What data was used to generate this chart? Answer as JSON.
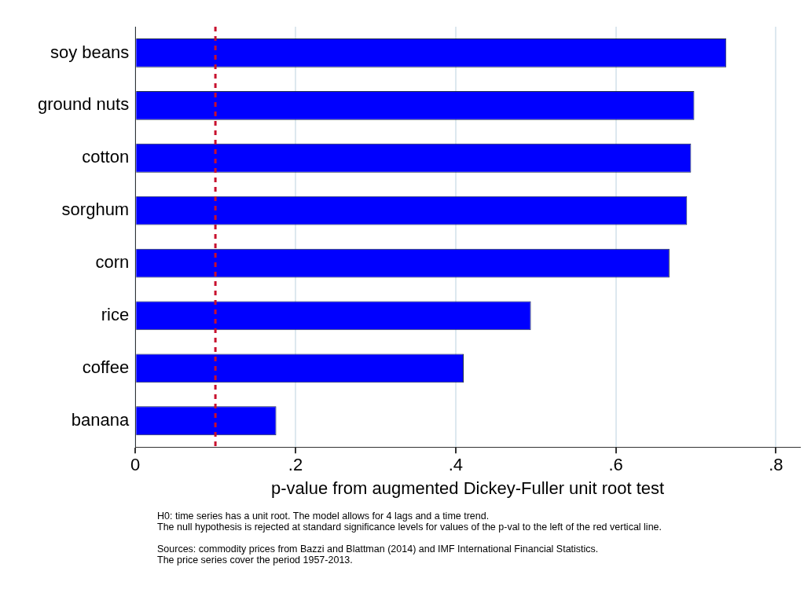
{
  "chart_data": {
    "type": "bar",
    "orientation": "horizontal",
    "xlabel": "p-value from augmented Dickey-Fuller unit root test",
    "categories": [
      "soy beans",
      "ground nuts",
      "cotton",
      "sorghum",
      "corn",
      "rice",
      "coffee",
      "banana"
    ],
    "values": [
      0.738,
      0.698,
      0.694,
      0.689,
      0.667,
      0.494,
      0.41,
      0.176
    ],
    "color": "#0000ff",
    "xlim": [
      0,
      0.83
    ],
    "xticks": [
      0,
      {
        "value": 0.2,
        "label": ".2"
      },
      {
        "value": 0.4,
        "label": ".4"
      },
      {
        "value": 0.6,
        "label": ".6"
      },
      {
        "value": 0.8,
        "label": ".8"
      }
    ],
    "grid": "x",
    "legend": false,
    "ref_lines": [
      {
        "axis": "x",
        "value": 0.1,
        "color": "#c8102e",
        "line_style": "dashed"
      }
    ],
    "annotations": [
      "H0: time series has a unit root. The model allows for 4 lags and a time trend.\nThe null hypothesis is rejected at standard significance levels for values of the p-val to the left of the red vertical line.",
      "Sources: commodity prices from Bazzi and Blattman (2014) and IMF International Financial Statistics.\nThe price series cover the period 1957-2013."
    ]
  }
}
